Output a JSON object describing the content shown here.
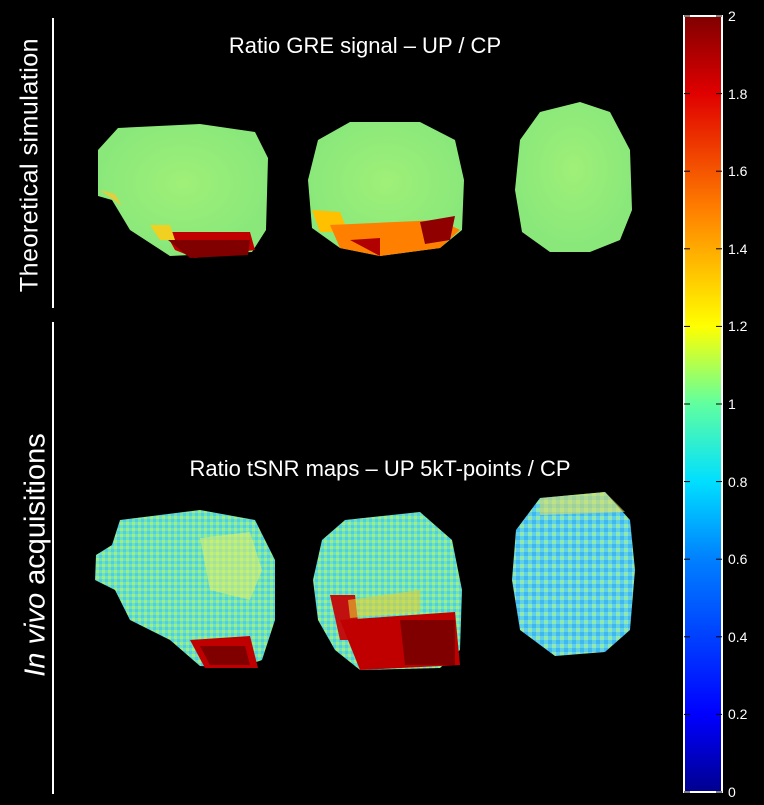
{
  "labels": {
    "top_section": "Theoretical simulation",
    "bottom_section_italic": "In vivo",
    "bottom_section_rest": " acquisitions"
  },
  "titles": {
    "top": "Ratio GRE signal – UP / CP",
    "bottom": "Ratio tSNR maps – UP 5kT-points / CP"
  },
  "colorbar": {
    "min": 0,
    "max": 2,
    "ticks": [
      "0",
      "0.2",
      "0.4",
      "0.6",
      "0.8",
      "1",
      "1.2",
      "1.4",
      "1.6",
      "1.8",
      "2"
    ],
    "colors": [
      "#00008f",
      "#0000ff",
      "#0060ff",
      "#00c0ff",
      "#40ffbf",
      "#9fff60",
      "#ffff00",
      "#ff9f00",
      "#ff4000",
      "#df0000",
      "#800000"
    ]
  },
  "maps": {
    "sim_base": "#8ff070",
    "invivo_base": "#7fdcb0"
  }
}
